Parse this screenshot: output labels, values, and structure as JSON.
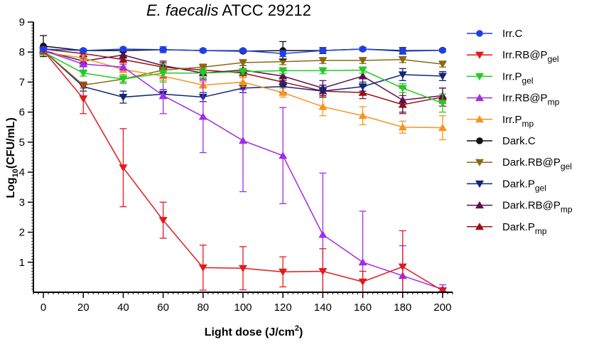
{
  "chart_data": {
    "type": "line",
    "title_italic": "E. faecalis",
    "title_rest": " ATCC 29212",
    "xlabel_main": "Light dose ",
    "xlabel_unit_pre": "(J/cm",
    "xlabel_unit_sup": "2",
    "xlabel_unit_post": ")",
    "ylabel_pre": "Log",
    "ylabel_sub": "10",
    "ylabel_post": "(CFU/mL)",
    "x": [
      0,
      20,
      40,
      60,
      80,
      100,
      120,
      140,
      160,
      180,
      200
    ],
    "xlim": [
      -5,
      205
    ],
    "ylim": [
      0,
      9
    ],
    "xticks": [
      "0",
      "20",
      "40",
      "60",
      "80",
      "100",
      "120",
      "140",
      "160",
      "180",
      "200"
    ],
    "yticks": [
      "1",
      "2",
      "3",
      "4",
      "5",
      "6",
      "7",
      "8",
      "9"
    ],
    "series": [
      {
        "name": "Irr.C",
        "label_main": "Irr.C",
        "label_sub": "",
        "color": "#1f3fe6",
        "marker": "circle",
        "values": [
          8.1,
          8.05,
          8.1,
          8.08,
          8.05,
          8.05,
          7.95,
          8.05,
          8.1,
          8.03,
          8.06
        ],
        "errors": [
          0.05,
          0.05,
          0.05,
          0.1,
          0.05,
          0.05,
          0.1,
          0.05,
          0.05,
          0.1,
          0.05
        ]
      },
      {
        "name": "Irr.RB@Pgel",
        "label_main": "Irr.RB@P",
        "label_sub": "gel",
        "color": "#e31a1c",
        "marker": "triangle-down",
        "values": [
          8.05,
          6.45,
          4.15,
          2.4,
          0.82,
          0.8,
          0.68,
          0.7,
          0.35,
          0.85,
          0.05
        ],
        "errors": [
          0.1,
          0.5,
          1.3,
          0.6,
          0.75,
          0.72,
          0.5,
          0.75,
          0.35,
          1.2,
          0.1
        ]
      },
      {
        "name": "Irr.Pgel",
        "label_main": "Irr.P",
        "label_sub": "gel",
        "color": "#22cc22",
        "marker": "triangle-down",
        "values": [
          8.0,
          7.3,
          7.1,
          7.3,
          7.3,
          7.35,
          7.38,
          7.38,
          7.4,
          6.8,
          6.3
        ],
        "errors": [
          0.1,
          0.1,
          0.15,
          0.3,
          0.15,
          0.1,
          0.1,
          0.1,
          0.1,
          0.15,
          0.3
        ]
      },
      {
        "name": "Irr.RB@Pmp",
        "label_main": "Irr.RB@P",
        "label_sub": "mp",
        "color": "#a22be8",
        "marker": "triangle-up",
        "values": [
          8.05,
          7.6,
          7.5,
          6.55,
          5.85,
          5.05,
          4.55,
          1.92,
          1.0,
          0.55,
          0.1
        ],
        "errors": [
          0.1,
          0.2,
          0.1,
          0.6,
          1.2,
          1.7,
          1.6,
          2.05,
          1.7,
          1.0,
          0.15
        ]
      },
      {
        "name": "Irr.Pmp",
        "label_main": "Irr.P",
        "label_sub": "mp",
        "color": "#f7941d",
        "marker": "triangle-up",
        "values": [
          8.0,
          7.8,
          7.42,
          7.2,
          6.9,
          7.0,
          6.65,
          6.18,
          5.88,
          5.5,
          5.48
        ],
        "errors": [
          0.1,
          0.1,
          0.1,
          0.15,
          0.1,
          0.15,
          0.15,
          0.3,
          0.3,
          0.2,
          0.4
        ]
      },
      {
        "name": "Dark.C",
        "label_main": "Dark.C",
        "label_sub": "",
        "color": "#111111",
        "marker": "circle",
        "values": [
          8.2,
          8.05,
          8.05,
          8.08,
          8.05,
          8.03,
          8.05,
          8.05,
          8.1,
          8.05,
          8.06
        ],
        "errors": [
          0.35,
          0.05,
          0.05,
          0.05,
          0.05,
          0.05,
          0.3,
          0.1,
          0.05,
          0.1,
          0.05
        ]
      },
      {
        "name": "Dark.RB@Pgel",
        "label_main": "Dark.RB@P",
        "label_sub": "gel",
        "color": "#8b6914",
        "marker": "triangle-down",
        "values": [
          8.05,
          6.9,
          7.1,
          7.4,
          7.5,
          7.65,
          7.68,
          7.72,
          7.72,
          7.75,
          7.6
        ],
        "errors": [
          0.1,
          0.1,
          0.1,
          0.1,
          0.1,
          0.1,
          0.1,
          0.1,
          0.1,
          0.1,
          0.1
        ]
      },
      {
        "name": "Dark.Pgel",
        "label_main": "Dark.P",
        "label_sub": "gel",
        "color": "#14247a",
        "marker": "triangle-down",
        "values": [
          8.05,
          6.85,
          6.5,
          6.6,
          6.5,
          6.8,
          6.85,
          6.7,
          6.85,
          7.25,
          7.2
        ],
        "errors": [
          0.1,
          0.15,
          0.2,
          0.15,
          0.15,
          0.15,
          0.2,
          0.2,
          0.15,
          0.2,
          0.15
        ]
      },
      {
        "name": "Dark.RB@Pmp",
        "label_main": "Dark.RB@P",
        "label_sub": "mp",
        "color": "#5a1050",
        "marker": "triangle-up",
        "values": [
          8.05,
          7.7,
          7.9,
          7.55,
          7.3,
          7.4,
          7.2,
          6.8,
          7.2,
          6.4,
          6.55
        ],
        "errors": [
          0.1,
          0.15,
          0.1,
          0.15,
          0.2,
          0.15,
          0.2,
          0.25,
          0.3,
          0.4,
          0.25
        ]
      },
      {
        "name": "Dark.Pmp",
        "label_main": "Dark.P",
        "label_sub": "mp",
        "color": "#9b1010",
        "marker": "triangle-up",
        "values": [
          8.1,
          7.95,
          7.75,
          7.5,
          7.4,
          7.3,
          7.0,
          6.7,
          6.65,
          6.25,
          6.5
        ],
        "errors": [
          0.1,
          0.1,
          0.15,
          0.15,
          0.15,
          0.15,
          0.15,
          0.2,
          0.2,
          0.3,
          0.3
        ]
      }
    ]
  }
}
